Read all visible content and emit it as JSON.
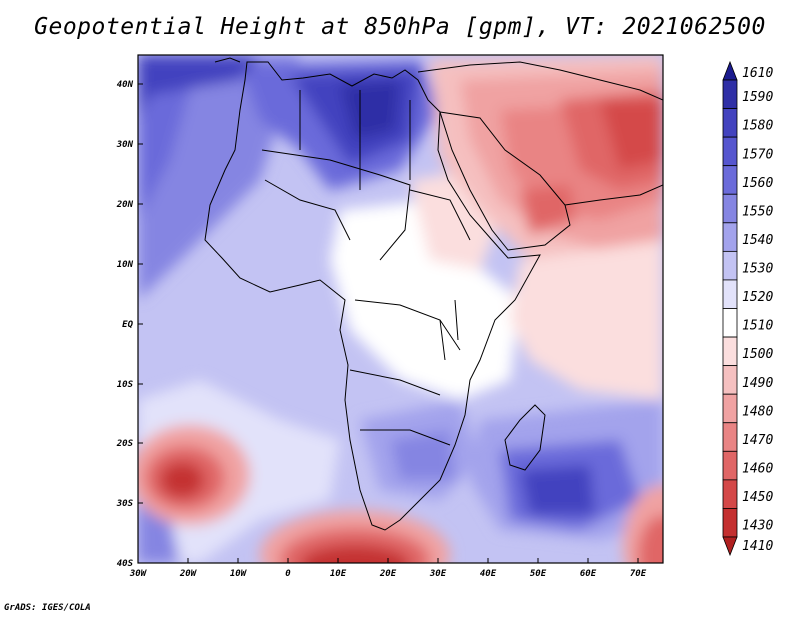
{
  "title": "Geopotential Height at 850hPa [gpm], VT: 2021062500",
  "footer": "GrADS: IGES/COLA",
  "map": {
    "region": "Africa",
    "lat_range": [
      -40,
      45
    ],
    "lon_range": [
      -30,
      75
    ],
    "lat_ticks": [
      "40N",
      "30N",
      "20N",
      "10N",
      "EQ",
      "10S",
      "20S",
      "30S",
      "40S"
    ],
    "lon_ticks": [
      "30W",
      "20W",
      "10W",
      "0",
      "10E",
      "20E",
      "30E",
      "40E",
      "50E",
      "60E",
      "70E"
    ]
  },
  "colorbar": {
    "levels": [
      "1610",
      "1590",
      "1580",
      "1570",
      "1560",
      "1550",
      "1540",
      "1530",
      "1520",
      "1510",
      "1500",
      "1490",
      "1480",
      "1470",
      "1460",
      "1450",
      "1430",
      "1410"
    ],
    "colors": [
      "#1b1b8e",
      "#2f2fa6",
      "#4343bf",
      "#5656cf",
      "#6b6bda",
      "#8585e2",
      "#a3a3ec",
      "#c3c3f3",
      "#e2e2fa",
      "#ffffff",
      "#fbdede",
      "#f5c0c0",
      "#f0a2a2",
      "#e98484",
      "#e06666",
      "#d44848",
      "#c43030",
      "#b02020"
    ]
  }
}
